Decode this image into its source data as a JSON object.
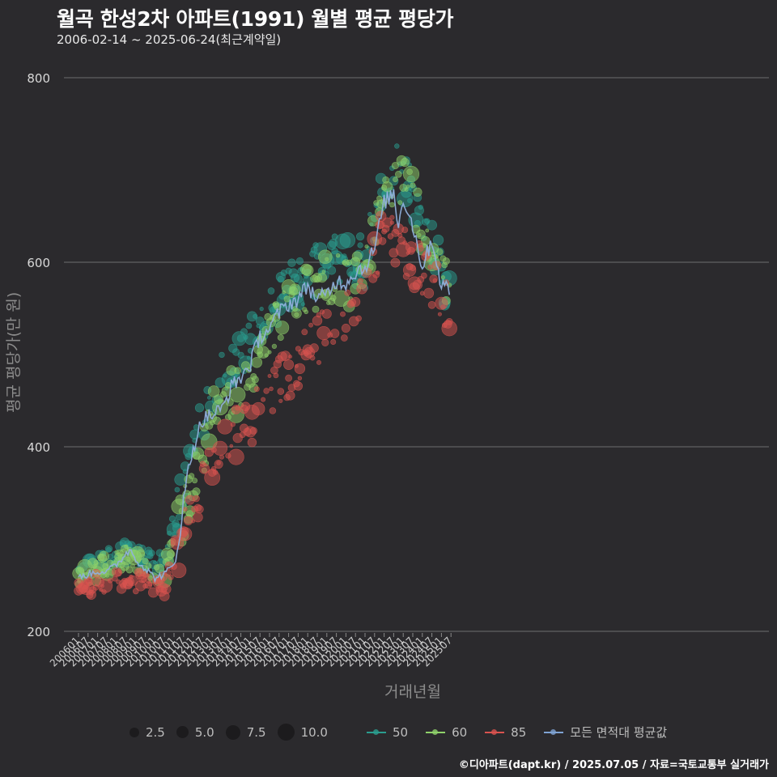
{
  "title": "월곡 한성2차 아파트(1991) 월별 평균 평당가",
  "subtitle": "2006-02-14 ~ 2025-06-24(최근계약일)",
  "footer": "©디아파트(dapt.kr) / 2025.07.05 / 자료=국토교통부 실거래가",
  "chart_data": {
    "type": "scatter",
    "title": "월곡 한성2차 아파트(1991) 월별 평균 평당가",
    "xlabel": "거래년월",
    "ylabel": "평균 평당가(만 원)",
    "ylim": [
      200,
      800
    ],
    "yticks": [
      200,
      400,
      600,
      800
    ],
    "grid": "horizontal",
    "x_tick_labels": [
      "200601",
      "200607",
      "200701",
      "200707",
      "200801",
      "200807",
      "200901",
      "200907",
      "201001",
      "201007",
      "201101",
      "201107",
      "201201",
      "201207",
      "201301",
      "201307",
      "201401",
      "201407",
      "201501",
      "201507",
      "201601",
      "201607",
      "201701",
      "201707",
      "201801",
      "201807",
      "201901",
      "201907",
      "202001",
      "202007",
      "202101",
      "202107",
      "202201",
      "202207",
      "202301",
      "202307",
      "202401",
      "202407",
      "202501",
      "202507"
    ],
    "size_legend": {
      "title": "",
      "values": [
        "2.5",
        "5.0",
        "7.5",
        "10.0"
      ]
    },
    "color_legend": [
      {
        "name": "50",
        "color": "#2a9d8f"
      },
      {
        "name": "60",
        "color": "#8fd16a"
      },
      {
        "name": "85",
        "color": "#d9534f"
      },
      {
        "name": "모든 면적대 평균값",
        "color": "#7fa3d3"
      }
    ],
    "average_line": {
      "name": "모든 면적대 평균값",
      "anchors": [
        [
          "2006-01",
          258
        ],
        [
          "2006-07",
          262
        ],
        [
          "2007-01",
          265
        ],
        [
          "2007-07",
          265
        ],
        [
          "2008-01",
          272
        ],
        [
          "2008-07",
          285
        ],
        [
          "2008-10",
          288
        ],
        [
          "2009-01",
          278
        ],
        [
          "2009-07",
          268
        ],
        [
          "2010-01",
          258
        ],
        [
          "2010-07",
          262
        ],
        [
          "2011-01",
          272
        ],
        [
          "2011-04",
          300
        ],
        [
          "2011-07",
          340
        ],
        [
          "2011-10",
          375
        ],
        [
          "2012-01",
          400
        ],
        [
          "2012-07",
          430
        ],
        [
          "2013-01",
          435
        ],
        [
          "2013-07",
          440
        ],
        [
          "2014-01",
          465
        ],
        [
          "2014-07",
          475
        ],
        [
          "2015-01",
          490
        ],
        [
          "2015-07",
          520
        ],
        [
          "2016-01",
          528
        ],
        [
          "2016-07",
          545
        ],
        [
          "2017-01",
          555
        ],
        [
          "2017-07",
          560
        ],
        [
          "2018-01",
          575
        ],
        [
          "2018-07",
          560
        ],
        [
          "2019-01",
          565
        ],
        [
          "2019-07",
          580
        ],
        [
          "2020-01",
          578
        ],
        [
          "2020-07",
          590
        ],
        [
          "2021-01",
          595
        ],
        [
          "2021-07",
          615
        ],
        [
          "2022-01",
          665
        ],
        [
          "2022-07",
          675
        ],
        [
          "2022-10",
          640
        ],
        [
          "2023-01",
          670
        ],
        [
          "2023-07",
          640
        ],
        [
          "2024-01",
          595
        ],
        [
          "2024-07",
          625
        ],
        [
          "2025-01",
          575
        ],
        [
          "2025-06",
          570
        ]
      ]
    },
    "series_trends": [
      {
        "name": "50",
        "anchors": [
          [
            "2006-01",
            265
          ],
          [
            "2008-07",
            285
          ],
          [
            "2010-07",
            275
          ],
          [
            "2011-07",
            360
          ],
          [
            "2013-01",
            460
          ],
          [
            "2015-01",
            520
          ],
          [
            "2017-01",
            570
          ],
          [
            "2019-01",
            600
          ],
          [
            "2021-01",
            600
          ],
          [
            "2022-01",
            700
          ],
          [
            "2023-01",
            700
          ],
          [
            "2024-07",
            620
          ],
          [
            "2025-06",
            560
          ]
        ]
      },
      {
        "name": "60",
        "anchors": [
          [
            "2006-01",
            258
          ],
          [
            "2008-07",
            280
          ],
          [
            "2010-07",
            262
          ],
          [
            "2011-07",
            330
          ],
          [
            "2013-01",
            430
          ],
          [
            "2015-01",
            480
          ],
          [
            "2017-01",
            555
          ],
          [
            "2019-01",
            580
          ],
          [
            "2021-01",
            580
          ],
          [
            "2022-01",
            690
          ],
          [
            "2023-01",
            690
          ],
          [
            "2024-07",
            610
          ],
          [
            "2025-06",
            570
          ]
        ]
      },
      {
        "name": "85",
        "anchors": [
          [
            "2006-01",
            250
          ],
          [
            "2008-07",
            255
          ],
          [
            "2010-07",
            248
          ],
          [
            "2011-07",
            300
          ],
          [
            "2013-01",
            390
          ],
          [
            "2015-01",
            430
          ],
          [
            "2017-01",
            480
          ],
          [
            "2019-01",
            525
          ],
          [
            "2021-01",
            560
          ],
          [
            "2022-01",
            640
          ],
          [
            "2023-01",
            610
          ],
          [
            "2024-07",
            580
          ],
          [
            "2025-06",
            550
          ]
        ]
      }
    ]
  }
}
